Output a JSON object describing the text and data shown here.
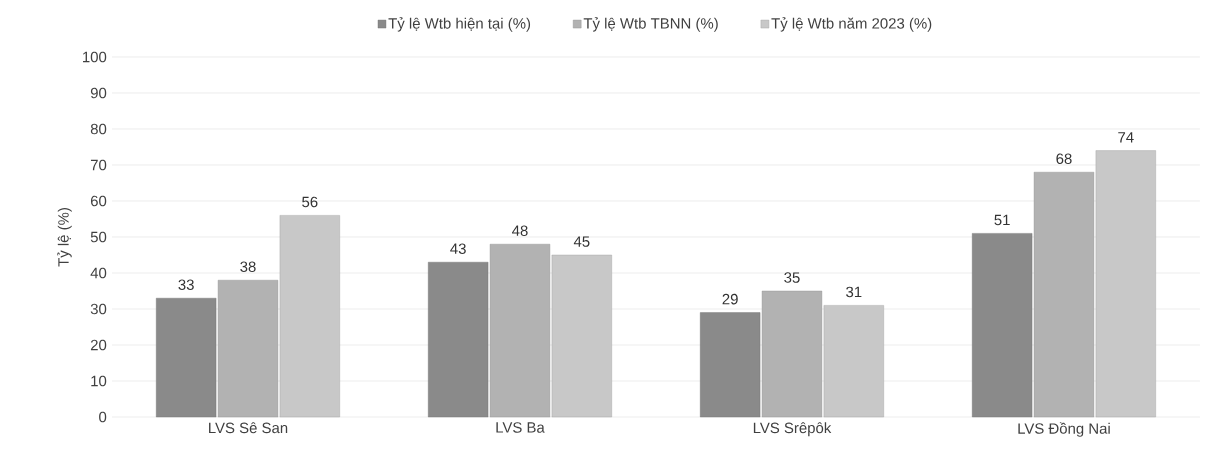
{
  "chart_data": {
    "type": "bar",
    "ylabel": "Tỷ lệ (%)",
    "categories": [
      "LVS Sê San",
      "LVS Ba",
      "LVS Srêpôk",
      "LVS Đồng Nai"
    ],
    "series": [
      {
        "name": "Tỷ lệ Wtb hiện tại (%)",
        "color": "#8a8a8a",
        "values": [
          33,
          43,
          29,
          51
        ]
      },
      {
        "name": "Tỷ lệ Wtb TBNN (%)",
        "color": "#b2b2b2",
        "values": [
          38,
          48,
          35,
          68
        ]
      },
      {
        "name": "Tỷ lệ Wtb năm 2023 (%)",
        "color": "#c8c8c8",
        "values": [
          56,
          45,
          31,
          74
        ]
      }
    ],
    "ylim": [
      0,
      100
    ],
    "yticks": [
      0,
      10,
      20,
      30,
      40,
      50,
      60,
      70,
      80,
      90,
      100
    ],
    "grid": "y",
    "legend": "top",
    "data_labels": true
  }
}
